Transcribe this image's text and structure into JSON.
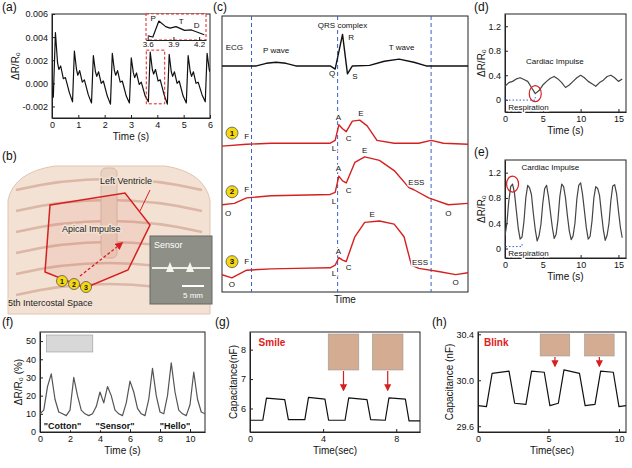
{
  "chart_data": [
    {
      "panel": "(a)",
      "type": "line",
      "xlabel": "Time (s)",
      "ylabel": "ΔR/R₀",
      "x": [
        0.0,
        0.05,
        0.13,
        0.21,
        0.26,
        0.33,
        0.43,
        0.51,
        0.66,
        0.78,
        0.85,
        0.93,
        0.98,
        1.05,
        1.15,
        1.23,
        1.38,
        1.5,
        1.57,
        1.65,
        1.7,
        1.77,
        1.87,
        1.95,
        2.1,
        2.22,
        2.29,
        2.37,
        2.42,
        2.49,
        2.59,
        2.67,
        2.82,
        2.94,
        3.01,
        3.09,
        3.14,
        3.21,
        3.31,
        3.39,
        3.54,
        3.66,
        3.73,
        3.81,
        3.86,
        3.93,
        4.03,
        4.11,
        4.26,
        4.38,
        4.45,
        4.53,
        4.58,
        4.65,
        4.75,
        4.83,
        4.98,
        5.1,
        5.17,
        5.25,
        5.3,
        5.37,
        5.47,
        5.55,
        5.7,
        5.82,
        5.89,
        5.97,
        6.0
      ],
      "series": [
        {
          "color": "#111111",
          "values": [
            -0.0005,
            -0.0012,
            0.0044,
            0.0018,
            0.0012,
            0.0015,
            0.0004,
            0.0005,
            -0.0008,
            -0.0016,
            0.0028,
            0.0012,
            0.0007,
            0.0011,
            0.0001,
            0.0003,
            -0.001,
            -0.0017,
            0.0024,
            0.001,
            0.0006,
            0.001,
            0.0,
            0.0002,
            -0.0011,
            -0.0018,
            0.0026,
            0.0011,
            0.0007,
            0.0011,
            0.0001,
            0.0002,
            -0.0011,
            -0.0017,
            0.0022,
            0.0009,
            0.0005,
            0.0009,
            -0.0001,
            0.0001,
            -0.0011,
            -0.0016,
            0.0027,
            0.0012,
            0.0008,
            0.0012,
            0.0002,
            0.0003,
            -0.001,
            -0.0018,
            0.0025,
            0.001,
            0.0006,
            0.001,
            0.0,
            0.0002,
            -0.0011,
            -0.0017,
            0.0024,
            0.001,
            0.0006,
            0.001,
            0.0,
            0.0001,
            -0.001,
            -0.0016,
            0.0026,
            0.0012,
            0.001
          ]
        }
      ],
      "xlim": [
        0,
        6
      ],
      "xticks": [
        0,
        1,
        2,
        3,
        4,
        5,
        6
      ],
      "ylim": [
        -0.003,
        0.006
      ],
      "yticks": [
        -0.002,
        {
          "value": 0,
          "label": "0.000"
        },
        0.002,
        0.004,
        0.006
      ],
      "inset": {
        "type": "line",
        "x": [
          3.6,
          3.66,
          3.73,
          3.81,
          3.86,
          3.93,
          4.03,
          4.11,
          4.26
        ],
        "series": [
          {
            "color": "#111111",
            "values": [
              -0.0013,
              -0.0016,
              0.0027,
              0.0012,
              0.0008,
              0.0012,
              0.0002,
              0.0003,
              -0.001
            ]
          }
        ],
        "xlim": [
          3.58,
          4.28
        ],
        "ylim": [
          -0.0024,
          0.0046
        ],
        "xticks": [
          3.6,
          3.9,
          4.2
        ],
        "tick_labels": "x",
        "color": "#e02020",
        "line_style": "dashed",
        "annotations": [
          {
            "text": "P",
            "x": 3.665,
            "y": 0.0034
          },
          {
            "text": "T",
            "x": 3.99,
            "y": 0.0025
          },
          {
            "text": "D",
            "x": 4.17,
            "y": 0.0015
          }
        ]
      }
    },
    {
      "panel": "(c)",
      "type": "line",
      "xlabel": "Time",
      "tick_labels": false,
      "xlim": [
        0,
        100
      ],
      "ylim": [
        0,
        10.5
      ],
      "vlines": [
        12,
        47,
        85
      ],
      "series": [
        {
          "color": "#111111",
          "x": [
            0,
            14,
            18,
            22,
            26,
            30,
            44,
            46,
            49,
            51,
            53,
            60,
            66,
            72,
            78,
            83,
            100
          ],
          "values": [
            8.6,
            8.6,
            8.7,
            8.74,
            8.7,
            8.6,
            8.6,
            8.48,
            9.8,
            8.3,
            8.6,
            8.62,
            8.78,
            8.86,
            8.74,
            8.6,
            8.6
          ]
        },
        {
          "label": 1,
          "color": "#d62020",
          "x": [
            0,
            10,
            20,
            30,
            44,
            46,
            47.5,
            49,
            50.5,
            53,
            56,
            59,
            63,
            70,
            80,
            85,
            90,
            100
          ],
          "values": [
            5.55,
            5.62,
            5.66,
            5.66,
            5.66,
            5.77,
            6.36,
            6.21,
            6.1,
            6.5,
            6.54,
            6.32,
            5.77,
            5.66,
            5.66,
            5.77,
            5.66,
            5.62
          ]
        },
        {
          "label": 2,
          "color": "#d62020",
          "x": [
            0,
            5,
            10,
            20,
            30,
            44,
            46,
            47.5,
            49,
            50.5,
            54,
            58,
            64,
            70,
            76,
            78,
            84,
            92,
            100
          ],
          "values": [
            3.32,
            3.37,
            3.58,
            3.66,
            3.68,
            3.71,
            3.79,
            4.41,
            4.23,
            4.15,
            4.93,
            5.14,
            5.01,
            4.62,
            3.97,
            3.89,
            3.58,
            3.32,
            3.37
          ]
        },
        {
          "label": 3,
          "color": "#d62020",
          "x": [
            0,
            4,
            10,
            20,
            30,
            44,
            46,
            47.5,
            49,
            50.5,
            54,
            58,
            64,
            70,
            74,
            77,
            80,
            88,
            95,
            100
          ],
          "values": [
            0.66,
            0.54,
            0.83,
            0.88,
            0.9,
            0.92,
            1.02,
            1.31,
            1.21,
            1.16,
            2.1,
            2.65,
            2.7,
            2.58,
            2.1,
            1.02,
            0.9,
            0.78,
            0.66,
            0.73
          ]
        }
      ],
      "annotations": [
        {
          "text": "ECG",
          "x": 5,
          "y": 9.3
        },
        {
          "text": "P wave",
          "x": 22,
          "y": 9.2
        },
        {
          "text": "QRS complex",
          "x": 49,
          "y": 10.15
        },
        {
          "text": "R",
          "x": 52.5,
          "y": 9.7
        },
        {
          "text": "Q",
          "x": 44.8,
          "y": 8.3
        },
        {
          "text": "S",
          "x": 54,
          "y": 8.2
        },
        {
          "text": "T wave",
          "x": 73,
          "y": 9.3
        },
        {
          "text": "F",
          "x": 10,
          "y": 5.9
        },
        {
          "text": "A",
          "x": 47.3,
          "y": 6.62
        },
        {
          "text": "L",
          "x": 45.5,
          "y": 5.45
        },
        {
          "text": "C",
          "x": 51.5,
          "y": 5.85
        },
        {
          "text": "E",
          "x": 56.5,
          "y": 6.8
        },
        {
          "text": "O",
          "x": 2.5,
          "y": 2.98
        },
        {
          "text": "F",
          "x": 10,
          "y": 3.9
        },
        {
          "text": "A",
          "x": 47.3,
          "y": 4.68
        },
        {
          "text": "L",
          "x": 45.5,
          "y": 3.45
        },
        {
          "text": "C",
          "x": 51.5,
          "y": 3.85
        },
        {
          "text": "E",
          "x": 58,
          "y": 5.4
        },
        {
          "text": "ESS",
          "x": 79,
          "y": 4.15
        },
        {
          "text": "O",
          "x": 92,
          "y": 3.0
        },
        {
          "text": "O",
          "x": 4,
          "y": 0.3
        },
        {
          "text": "F",
          "x": 10,
          "y": 1.15
        },
        {
          "text": "A",
          "x": 47.3,
          "y": 1.55
        },
        {
          "text": "L",
          "x": 45.5,
          "y": 0.72
        },
        {
          "text": "C",
          "x": 51.5,
          "y": 0.95
        },
        {
          "text": "E",
          "x": 61,
          "y": 2.95
        },
        {
          "text": "ESS",
          "x": 80.5,
          "y": 1.12
        },
        {
          "text": "O",
          "x": 95,
          "y": 0.38
        }
      ]
    },
    {
      "panel": "(d)",
      "type": "line",
      "xlabel": "Time (s)",
      "ylabel": "ΔR/R₀",
      "x": [
        0,
        0.5,
        1,
        1.5,
        2,
        2.5,
        3,
        3.5,
        4,
        4.5,
        5,
        5.5,
        6,
        6.5,
        7,
        7.5,
        8,
        8.5,
        9,
        9.5,
        10,
        10.5,
        11,
        11.5,
        12,
        12.5,
        13,
        13.5,
        14,
        14.5,
        15,
        15.5
      ],
      "series": [
        {
          "color": "#444444",
          "values": [
            0.22,
            0.28,
            0.3,
            0.34,
            0.36,
            0.33,
            0.3,
            0.2,
            0.1,
            0.15,
            0.24,
            0.3,
            0.35,
            0.38,
            0.34,
            0.28,
            0.2,
            0.24,
            0.3,
            0.36,
            0.4,
            0.36,
            0.3,
            0.26,
            0.22,
            0.28,
            0.32,
            0.38,
            0.4,
            0.36,
            0.3,
            0.34
          ]
        }
      ],
      "xlim": [
        0,
        16
      ],
      "xticks": [
        0,
        5,
        10,
        15
      ],
      "ylim": [
        -0.2,
        1.4
      ],
      "yticks": [
        0,
        0.4,
        0.8,
        1.2
      ],
      "annotations": [
        {
          "text": "Cardiac Impulse",
          "x": 6.6,
          "y": 0.62,
          "point": [
            4.0,
            0.1
          ]
        },
        {
          "text": "Respiration",
          "x": 3.1,
          "y": -0.12,
          "span": [
            0,
            4
          ]
        }
      ]
    },
    {
      "panel": "(e)",
      "type": "line",
      "xlabel": "Time (s)",
      "ylabel": "ΔR/R₀",
      "x": [
        0,
        0.25,
        0.5,
        0.75,
        1,
        1.25,
        1.5,
        1.75,
        2,
        2.25,
        2.5,
        2.75,
        3,
        3.25,
        3.5,
        3.75,
        4,
        4.25,
        4.5,
        4.75,
        5,
        5.25,
        5.5,
        5.75,
        6,
        6.25,
        6.5,
        6.75,
        7,
        7.25,
        7.5,
        7.75,
        8,
        8.25,
        8.5,
        8.75,
        9,
        9.25,
        9.5,
        9.75,
        10,
        10.25,
        10.5,
        10.75,
        11,
        11.25,
        11.5,
        11.75,
        12,
        12.25,
        12.5,
        12.75,
        13,
        13.25,
        13.5,
        13.75,
        14,
        14.25,
        14.5,
        14.75,
        15,
        15.25,
        15.5
      ],
      "series": [
        {
          "color": "#444444",
          "values": [
            0.2,
            0.4,
            0.75,
            0.98,
            1.02,
            0.88,
            0.6,
            0.32,
            0.15,
            0.18,
            0.42,
            0.8,
            1.0,
            0.96,
            0.85,
            0.55,
            0.3,
            0.12,
            0.2,
            0.38,
            0.72,
            0.95,
            1.0,
            0.82,
            0.58,
            0.34,
            0.16,
            0.22,
            0.45,
            0.82,
            1.02,
            0.98,
            0.8,
            0.52,
            0.28,
            0.14,
            0.2,
            0.4,
            0.78,
            1.0,
            1.04,
            0.86,
            0.6,
            0.33,
            0.15,
            0.19,
            0.43,
            0.8,
            0.98,
            0.95,
            0.84,
            0.56,
            0.3,
            0.13,
            0.21,
            0.4,
            0.76,
            0.99,
            1.01,
            0.87,
            0.6,
            0.34,
            0.17
          ]
        }
      ],
      "xlim": [
        0,
        16
      ],
      "xticks": [
        0,
        5,
        10,
        15
      ],
      "ylim": [
        -0.15,
        1.4
      ],
      "yticks": [
        0,
        0.4,
        0.8,
        1.2
      ],
      "annotations": [
        {
          "text": "Cardiac Impulse",
          "x": 6.0,
          "y": 1.28,
          "point": [
            1.0,
            1.02
          ]
        },
        {
          "text": "Respiration",
          "x": 3.1,
          "y": -0.08,
          "span": [
            0,
            2.25
          ]
        }
      ]
    },
    {
      "panel": "(f)",
      "type": "line",
      "xlabel": "Time (s)",
      "ylabel": "ΔR/R₀ (%)",
      "x": [
        0,
        0.25,
        0.5,
        0.75,
        1,
        1.25,
        1.5,
        1.75,
        2,
        2.25,
        2.5,
        2.75,
        3,
        3.25,
        3.5,
        3.75,
        4,
        4.25,
        4.5,
        4.75,
        5,
        5.25,
        5.5,
        5.75,
        6,
        6.25,
        6.5,
        6.75,
        7,
        7.25,
        7.5,
        7.75,
        8,
        8.25,
        8.5,
        8.75,
        9,
        9.25,
        9.5,
        9.75,
        10,
        10.25,
        10.5,
        10.75,
        11
      ],
      "series": [
        {
          "color": "#555555",
          "values": [
            10,
            12,
            25,
            32,
            18,
            11,
            10,
            9,
            12,
            30,
            20,
            12,
            10,
            9,
            10,
            14,
            22,
            16,
            25,
            20,
            12,
            10,
            9,
            16,
            28,
            22,
            13,
            10,
            9,
            18,
            35,
            20,
            11,
            10,
            20,
            38,
            22,
            12,
            10,
            9,
            15,
            33,
            18,
            11,
            10
          ]
        }
      ],
      "xlim": [
        0,
        11
      ],
      "xticks": [
        0,
        2,
        4,
        6,
        8,
        10
      ],
      "ylim": [
        0,
        55
      ],
      "yticks": [
        0,
        10,
        20,
        30,
        40,
        50
      ],
      "annotations": [
        {
          "text": "\"Cotton\"",
          "x": 1.5,
          "y": 3.5
        },
        {
          "text": "\"Sensor\"",
          "x": 5.0,
          "y": 3.5
        },
        {
          "text": "\"Hello\"",
          "x": 9.0,
          "y": 3.5
        }
      ]
    },
    {
      "panel": "(g)",
      "type": "line",
      "xlabel": "Time(sec)",
      "ylabel": "Capacitance(nF)",
      "x": [
        0,
        0.7,
        0.9,
        1.9,
        2.1,
        3.0,
        3.2,
        4.1,
        4.3,
        5.2,
        5.4,
        6.4,
        6.6,
        7.4,
        7.6,
        8.5,
        8.7,
        9.3
      ],
      "series": [
        {
          "color": "#111111",
          "values": [
            5.6,
            5.6,
            6.35,
            6.3,
            5.62,
            5.62,
            6.38,
            6.32,
            5.6,
            5.6,
            6.36,
            6.3,
            5.62,
            5.6,
            6.36,
            6.32,
            5.58,
            5.58
          ]
        }
      ],
      "xlim": [
        0,
        9.3
      ],
      "xticks": [
        0,
        4,
        8
      ],
      "ylim": [
        5.2,
        8.6
      ],
      "yticks": [
        6,
        7,
        8
      ],
      "annotations": [
        {
          "text": "Smile",
          "x": 1.2,
          "y": 8.25,
          "color": "#e02020"
        }
      ]
    },
    {
      "panel": "(h)",
      "type": "line",
      "xlabel": "Time(sec)",
      "ylabel": "Capacitance (nF)",
      "x": [
        0,
        0.6,
        1.0,
        2.2,
        2.6,
        3.4,
        3.8,
        4.7,
        5.1,
        5.7,
        6.1,
        7.2,
        7.6,
        8.3,
        8.7,
        9.6,
        10.0,
        10.5
      ],
      "series": [
        {
          "color": "#111111",
          "values": [
            29.78,
            29.77,
            30.06,
            30.08,
            29.8,
            29.79,
            30.08,
            30.07,
            29.78,
            29.8,
            30.09,
            30.06,
            29.78,
            29.79,
            30.08,
            30.07,
            29.77,
            29.78
          ]
        }
      ],
      "xlim": [
        0,
        10.5
      ],
      "xticks": [
        0,
        5,
        10
      ],
      "ylim": [
        29.55,
        30.42
      ],
      "yticks": [
        29.6,
        {
          "value": 30,
          "label": "30.0"
        },
        30.4
      ],
      "annotations": [
        {
          "text": "Blink",
          "x": 1.3,
          "y": 30.33,
          "color": "#e02020"
        }
      ]
    }
  ],
  "diagram": {
    "panel": "(b)",
    "labels": [
      "Left Ventricle",
      "Apical Impulse",
      "5th Intercostal Space"
    ],
    "positions": [
      1,
      2,
      3
    ],
    "inset": {
      "label": "Sensor",
      "scale_bar": "5 mm"
    }
  }
}
